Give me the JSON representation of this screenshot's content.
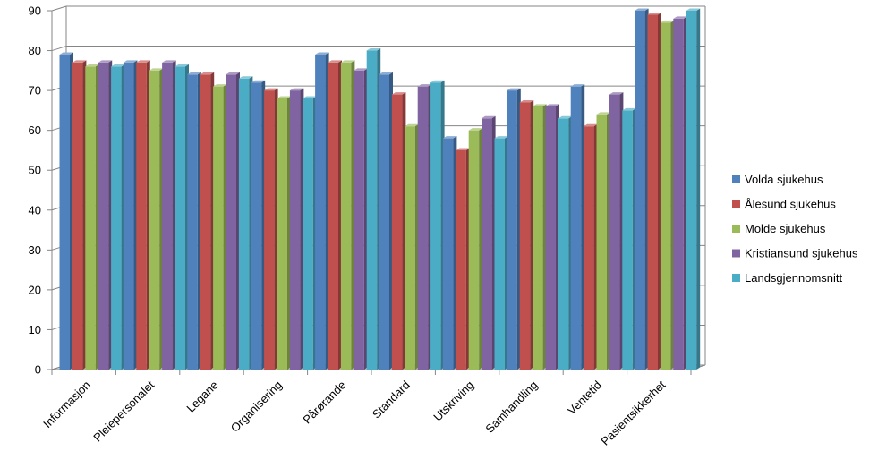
{
  "chart_data": {
    "type": "bar",
    "title": "",
    "xlabel": "",
    "ylabel": "",
    "ylim": [
      0,
      90
    ],
    "yticks": [
      0,
      10,
      20,
      30,
      40,
      50,
      60,
      70,
      80,
      90
    ],
    "grid": true,
    "legend_position": "right",
    "categories": [
      "Informasjon",
      "Pleiepersonalet",
      "Legane",
      "Organisering",
      "Pårørande",
      "Standard",
      "Utskriving",
      "Samhandling",
      "Ventetid",
      "Pasientsikkerhet"
    ],
    "series": [
      {
        "name": "Volda sjukehus",
        "color": "#4F81BD",
        "values": [
          79,
          77,
          74,
          72,
          79,
          74,
          58,
          70,
          71,
          90
        ]
      },
      {
        "name": "Ålesund sjukehus",
        "color": "#C0504D",
        "values": [
          77,
          77,
          74,
          70,
          77,
          69,
          55,
          67,
          61,
          89
        ]
      },
      {
        "name": "Molde sjukehus",
        "color": "#9BBB59",
        "values": [
          76,
          75,
          71,
          68,
          77,
          61,
          60,
          66,
          64,
          87
        ]
      },
      {
        "name": "Kristiansund sjukehus",
        "color": "#8064A2",
        "values": [
          77,
          77,
          74,
          70,
          75,
          71,
          63,
          66,
          69,
          88
        ]
      },
      {
        "name": "Landsgjennomsnitt",
        "color": "#4BACC6",
        "values": [
          76,
          76,
          73,
          68,
          80,
          72,
          58,
          63,
          65,
          90
        ]
      }
    ]
  }
}
